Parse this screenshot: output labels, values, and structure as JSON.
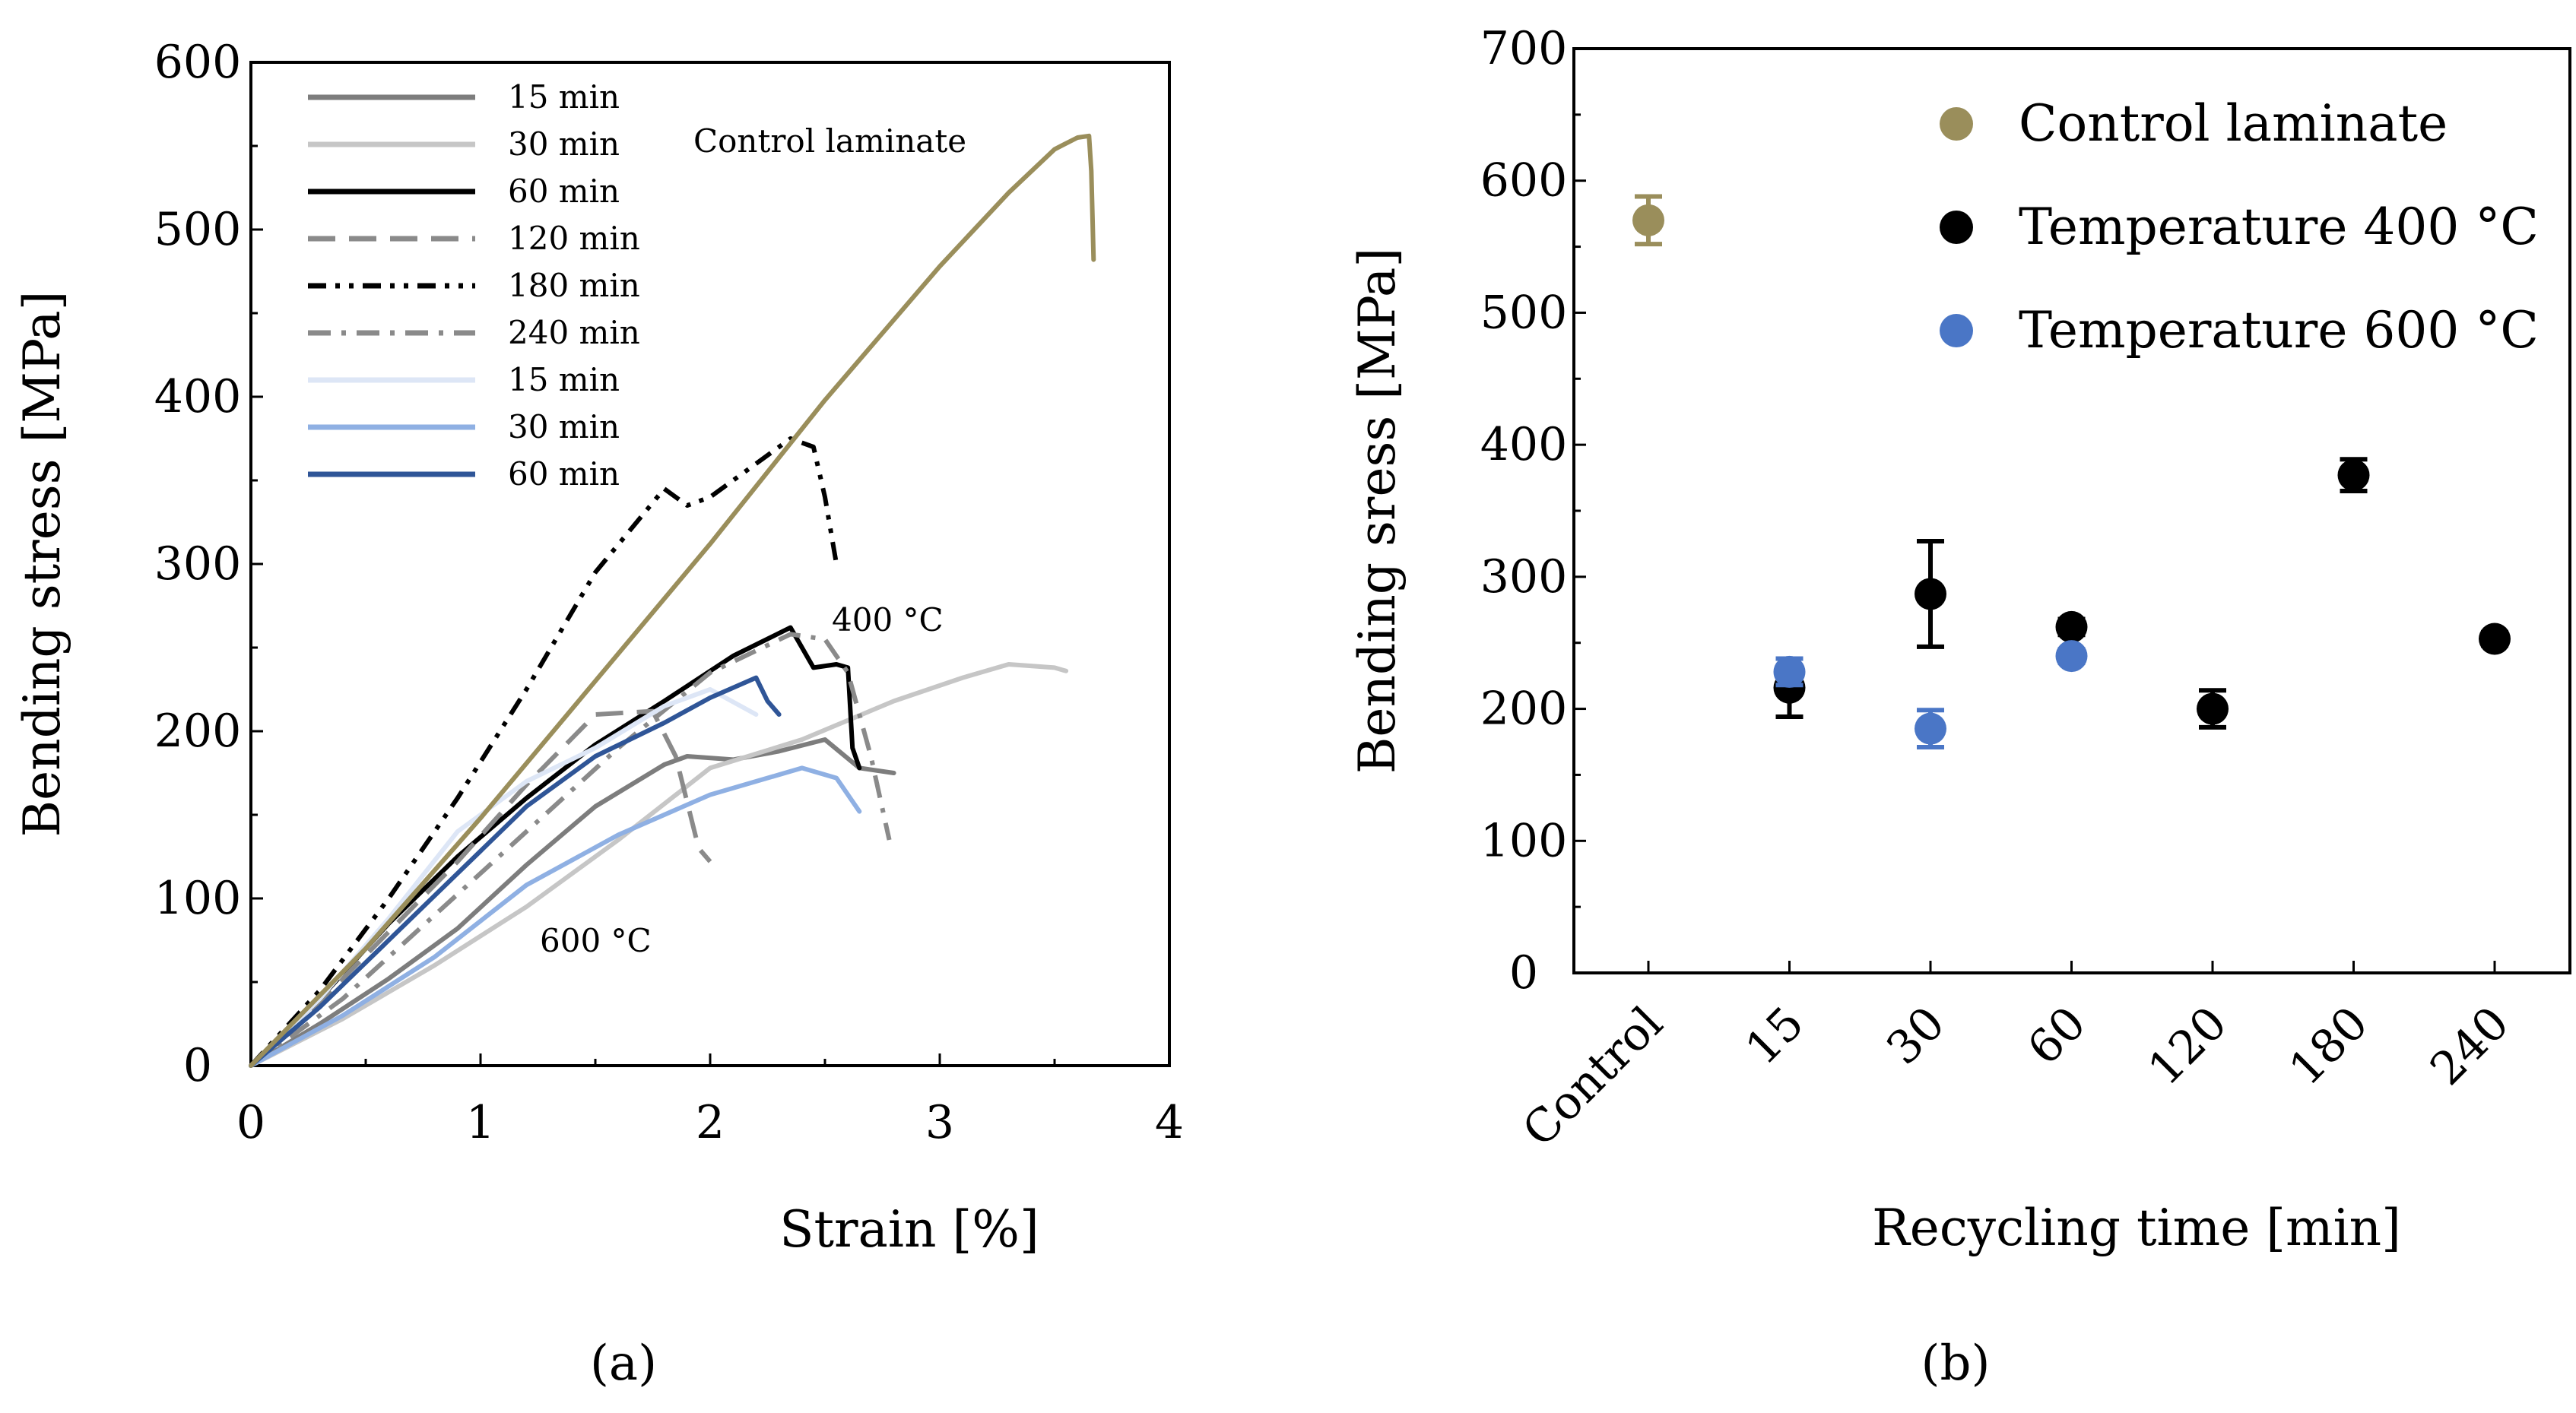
{
  "chart_data": [
    {
      "panel": "a",
      "type": "line",
      "xlabel": "Strain [%]",
      "ylabel": "Bending stress [MPa]",
      "xlim": [
        0,
        4
      ],
      "ylim": [
        0,
        600
      ],
      "xticks": [
        0,
        1,
        2,
        3,
        4
      ],
      "yticks": [
        0,
        100,
        200,
        300,
        400,
        500,
        600
      ],
      "grid": false,
      "legend_position": "top-left",
      "annotations": [
        {
          "id": "control",
          "text": "Control laminate",
          "color": "#9a8e5b"
        },
        {
          "id": "t400",
          "text": "400 °C",
          "color": "#000000"
        },
        {
          "id": "t600",
          "text": "600 °C",
          "color": "#4a76c6"
        }
      ],
      "series": [
        {
          "name": "15 min",
          "group": "400 °C",
          "color": "#7d7d7d",
          "dash": "solid",
          "x": [
            0,
            0.3,
            0.6,
            0.9,
            1.2,
            1.5,
            1.8,
            1.9,
            2.1,
            2.3,
            2.5,
            2.65,
            2.8
          ],
          "y": [
            0,
            25,
            52,
            82,
            120,
            155,
            180,
            185,
            183,
            188,
            195,
            178,
            175
          ]
        },
        {
          "name": "30 min",
          "group": "400 °C",
          "color": "#c6c6c6",
          "dash": "solid",
          "x": [
            0,
            0.4,
            0.8,
            1.2,
            1.6,
            2.0,
            2.4,
            2.8,
            3.1,
            3.3,
            3.5,
            3.55
          ],
          "y": [
            0,
            28,
            60,
            95,
            135,
            178,
            195,
            218,
            232,
            240,
            238,
            236
          ]
        },
        {
          "name": "60 min",
          "group": "400 °C",
          "color": "#000000",
          "dash": "solid",
          "x": [
            0,
            0.3,
            0.6,
            0.9,
            1.2,
            1.5,
            1.8,
            2.1,
            2.35,
            2.45,
            2.55,
            2.6,
            2.62,
            2.65
          ],
          "y": [
            0,
            40,
            85,
            125,
            160,
            192,
            218,
            245,
            262,
            238,
            240,
            238,
            190,
            178
          ]
        },
        {
          "name": "120 min",
          "group": "400 °C",
          "color": "#8a8a8a",
          "dash": "dash",
          "x": [
            0,
            0.3,
            0.6,
            0.9,
            1.2,
            1.5,
            1.75,
            1.85,
            1.95,
            2.0
          ],
          "y": [
            0,
            38,
            80,
            122,
            168,
            210,
            212,
            185,
            130,
            122
          ]
        },
        {
          "name": "180 min",
          "group": "400 °C",
          "color": "#000000",
          "dash": "dashdotdot",
          "x": [
            0,
            0.3,
            0.6,
            0.9,
            1.2,
            1.5,
            1.8,
            1.9,
            2.0,
            2.2,
            2.35,
            2.45,
            2.5,
            2.55
          ],
          "y": [
            0,
            45,
            100,
            160,
            225,
            295,
            345,
            335,
            340,
            360,
            375,
            370,
            340,
            300
          ]
        },
        {
          "name": "240 min",
          "group": "400 °C",
          "color": "#8a8a8a",
          "dash": "dashdot",
          "x": [
            0,
            0.4,
            0.8,
            1.2,
            1.6,
            2.0,
            2.35,
            2.5,
            2.6,
            2.7,
            2.78
          ],
          "y": [
            0,
            40,
            90,
            140,
            190,
            235,
            258,
            255,
            235,
            185,
            135
          ]
        },
        {
          "name": "15 min",
          "group": "600 °C",
          "color": "#dde6f6",
          "dash": "solid",
          "x": [
            0,
            0.3,
            0.6,
            0.9,
            1.2,
            1.5,
            1.8,
            2.0,
            2.2
          ],
          "y": [
            0,
            40,
            88,
            140,
            170,
            190,
            215,
            225,
            210
          ]
        },
        {
          "name": "30 min",
          "group": "600 °C",
          "color": "#8fb0e3",
          "dash": "solid",
          "x": [
            0,
            0.4,
            0.8,
            1.2,
            1.6,
            2.0,
            2.4,
            2.55,
            2.65
          ],
          "y": [
            0,
            30,
            65,
            108,
            138,
            162,
            178,
            172,
            152
          ]
        },
        {
          "name": "60 min",
          "group": "600 °C",
          "color": "#2f5597",
          "dash": "solid",
          "x": [
            0,
            0.3,
            0.6,
            0.9,
            1.2,
            1.5,
            1.8,
            2.0,
            2.2,
            2.25,
            2.3
          ],
          "y": [
            0,
            35,
            75,
            115,
            155,
            185,
            205,
            220,
            232,
            218,
            210
          ]
        },
        {
          "name": "Control laminate",
          "group": "control",
          "color": "#9a8e5b",
          "dash": "solid",
          "in_legend": false,
          "x": [
            0,
            0.5,
            1.0,
            1.5,
            2.0,
            2.5,
            3.0,
            3.3,
            3.5,
            3.6,
            3.65,
            3.66,
            3.67
          ],
          "y": [
            0,
            70,
            148,
            230,
            312,
            398,
            478,
            522,
            548,
            555,
            556,
            535,
            482
          ]
        }
      ],
      "legend": [
        "15 min",
        "30 min",
        "60 min",
        "120 min",
        "180 min",
        "240 min",
        "15 min",
        "30 min",
        "60 min"
      ]
    },
    {
      "panel": "b",
      "type": "scatter",
      "xlabel": "Recycling time [min]",
      "ylabel": "Bending sress [MPa]",
      "categories": [
        "Control",
        "15",
        "30",
        "60",
        "120",
        "180",
        "240"
      ],
      "ylim": [
        0,
        700
      ],
      "yticks": [
        0,
        100,
        200,
        300,
        400,
        500,
        600,
        700
      ],
      "grid": false,
      "legend_position": "top-right",
      "series": [
        {
          "name": "Control laminate",
          "color": "#9a8e5b",
          "points": [
            {
              "category": "Control",
              "y": 570,
              "err": 18
            }
          ]
        },
        {
          "name": "Temperature 400 °C",
          "color": "#000000",
          "points": [
            {
              "category": "15",
              "y": 216,
              "err": 22
            },
            {
              "category": "30",
              "y": 287,
              "err": 40
            },
            {
              "category": "60",
              "y": 262,
              "err": 6
            },
            {
              "category": "120",
              "y": 200,
              "err": 14
            },
            {
              "category": "180",
              "y": 377,
              "err": 12
            },
            {
              "category": "240",
              "y": 253,
              "err": 5
            }
          ]
        },
        {
          "name": "Temperature 600 °C",
          "color": "#4a76c6",
          "points": [
            {
              "category": "15",
              "y": 228,
              "err": 10
            },
            {
              "category": "30",
              "y": 185,
              "err": 14
            },
            {
              "category": "60",
              "y": 240,
              "err": 5
            }
          ]
        }
      ]
    }
  ],
  "panel_labels": [
    "(a)",
    "(b)"
  ]
}
